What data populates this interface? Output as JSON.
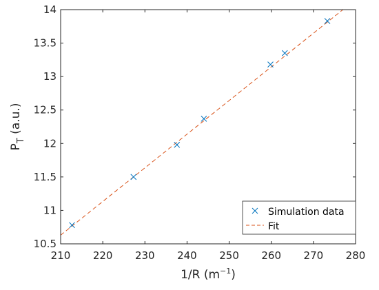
{
  "chart_data": {
    "type": "scatter",
    "xlabel": "1/R (m",
    "xlabel_sup": "−1",
    "xlabel_close": ")",
    "ylabel": "P",
    "ylabel_sub": "T",
    "ylabel_rest": " (a.u.)",
    "xlim": [
      210,
      280
    ],
    "ylim": [
      10.5,
      14
    ],
    "xticks": [
      210,
      220,
      230,
      240,
      250,
      260,
      270,
      280
    ],
    "yticks": [
      10.5,
      11,
      11.5,
      12,
      12.5,
      13,
      13.5,
      14
    ],
    "xtick_labels": [
      "210",
      "220",
      "230",
      "240",
      "250",
      "260",
      "270",
      "280"
    ],
    "ytick_labels": [
      "10.5",
      "11",
      "11.5",
      "12",
      "12.5",
      "13",
      "13.5",
      "14"
    ],
    "series": [
      {
        "name": "Simulation data",
        "marker": "x",
        "color": "#0072BD",
        "x": [
          212.7,
          227.3,
          237.6,
          244.0,
          259.8,
          263.2,
          273.3
        ],
        "y": [
          10.78,
          11.5,
          11.98,
          12.37,
          13.18,
          13.35,
          13.83
        ]
      },
      {
        "name": "Fit",
        "line": "dashed",
        "color": "#D95319",
        "x": [
          210,
          277.0
        ],
        "y": [
          10.63,
          14.0
        ]
      }
    ],
    "legend": {
      "position": "bottom-right",
      "entries": [
        "Simulation data",
        "Fit"
      ]
    },
    "grid": false
  }
}
